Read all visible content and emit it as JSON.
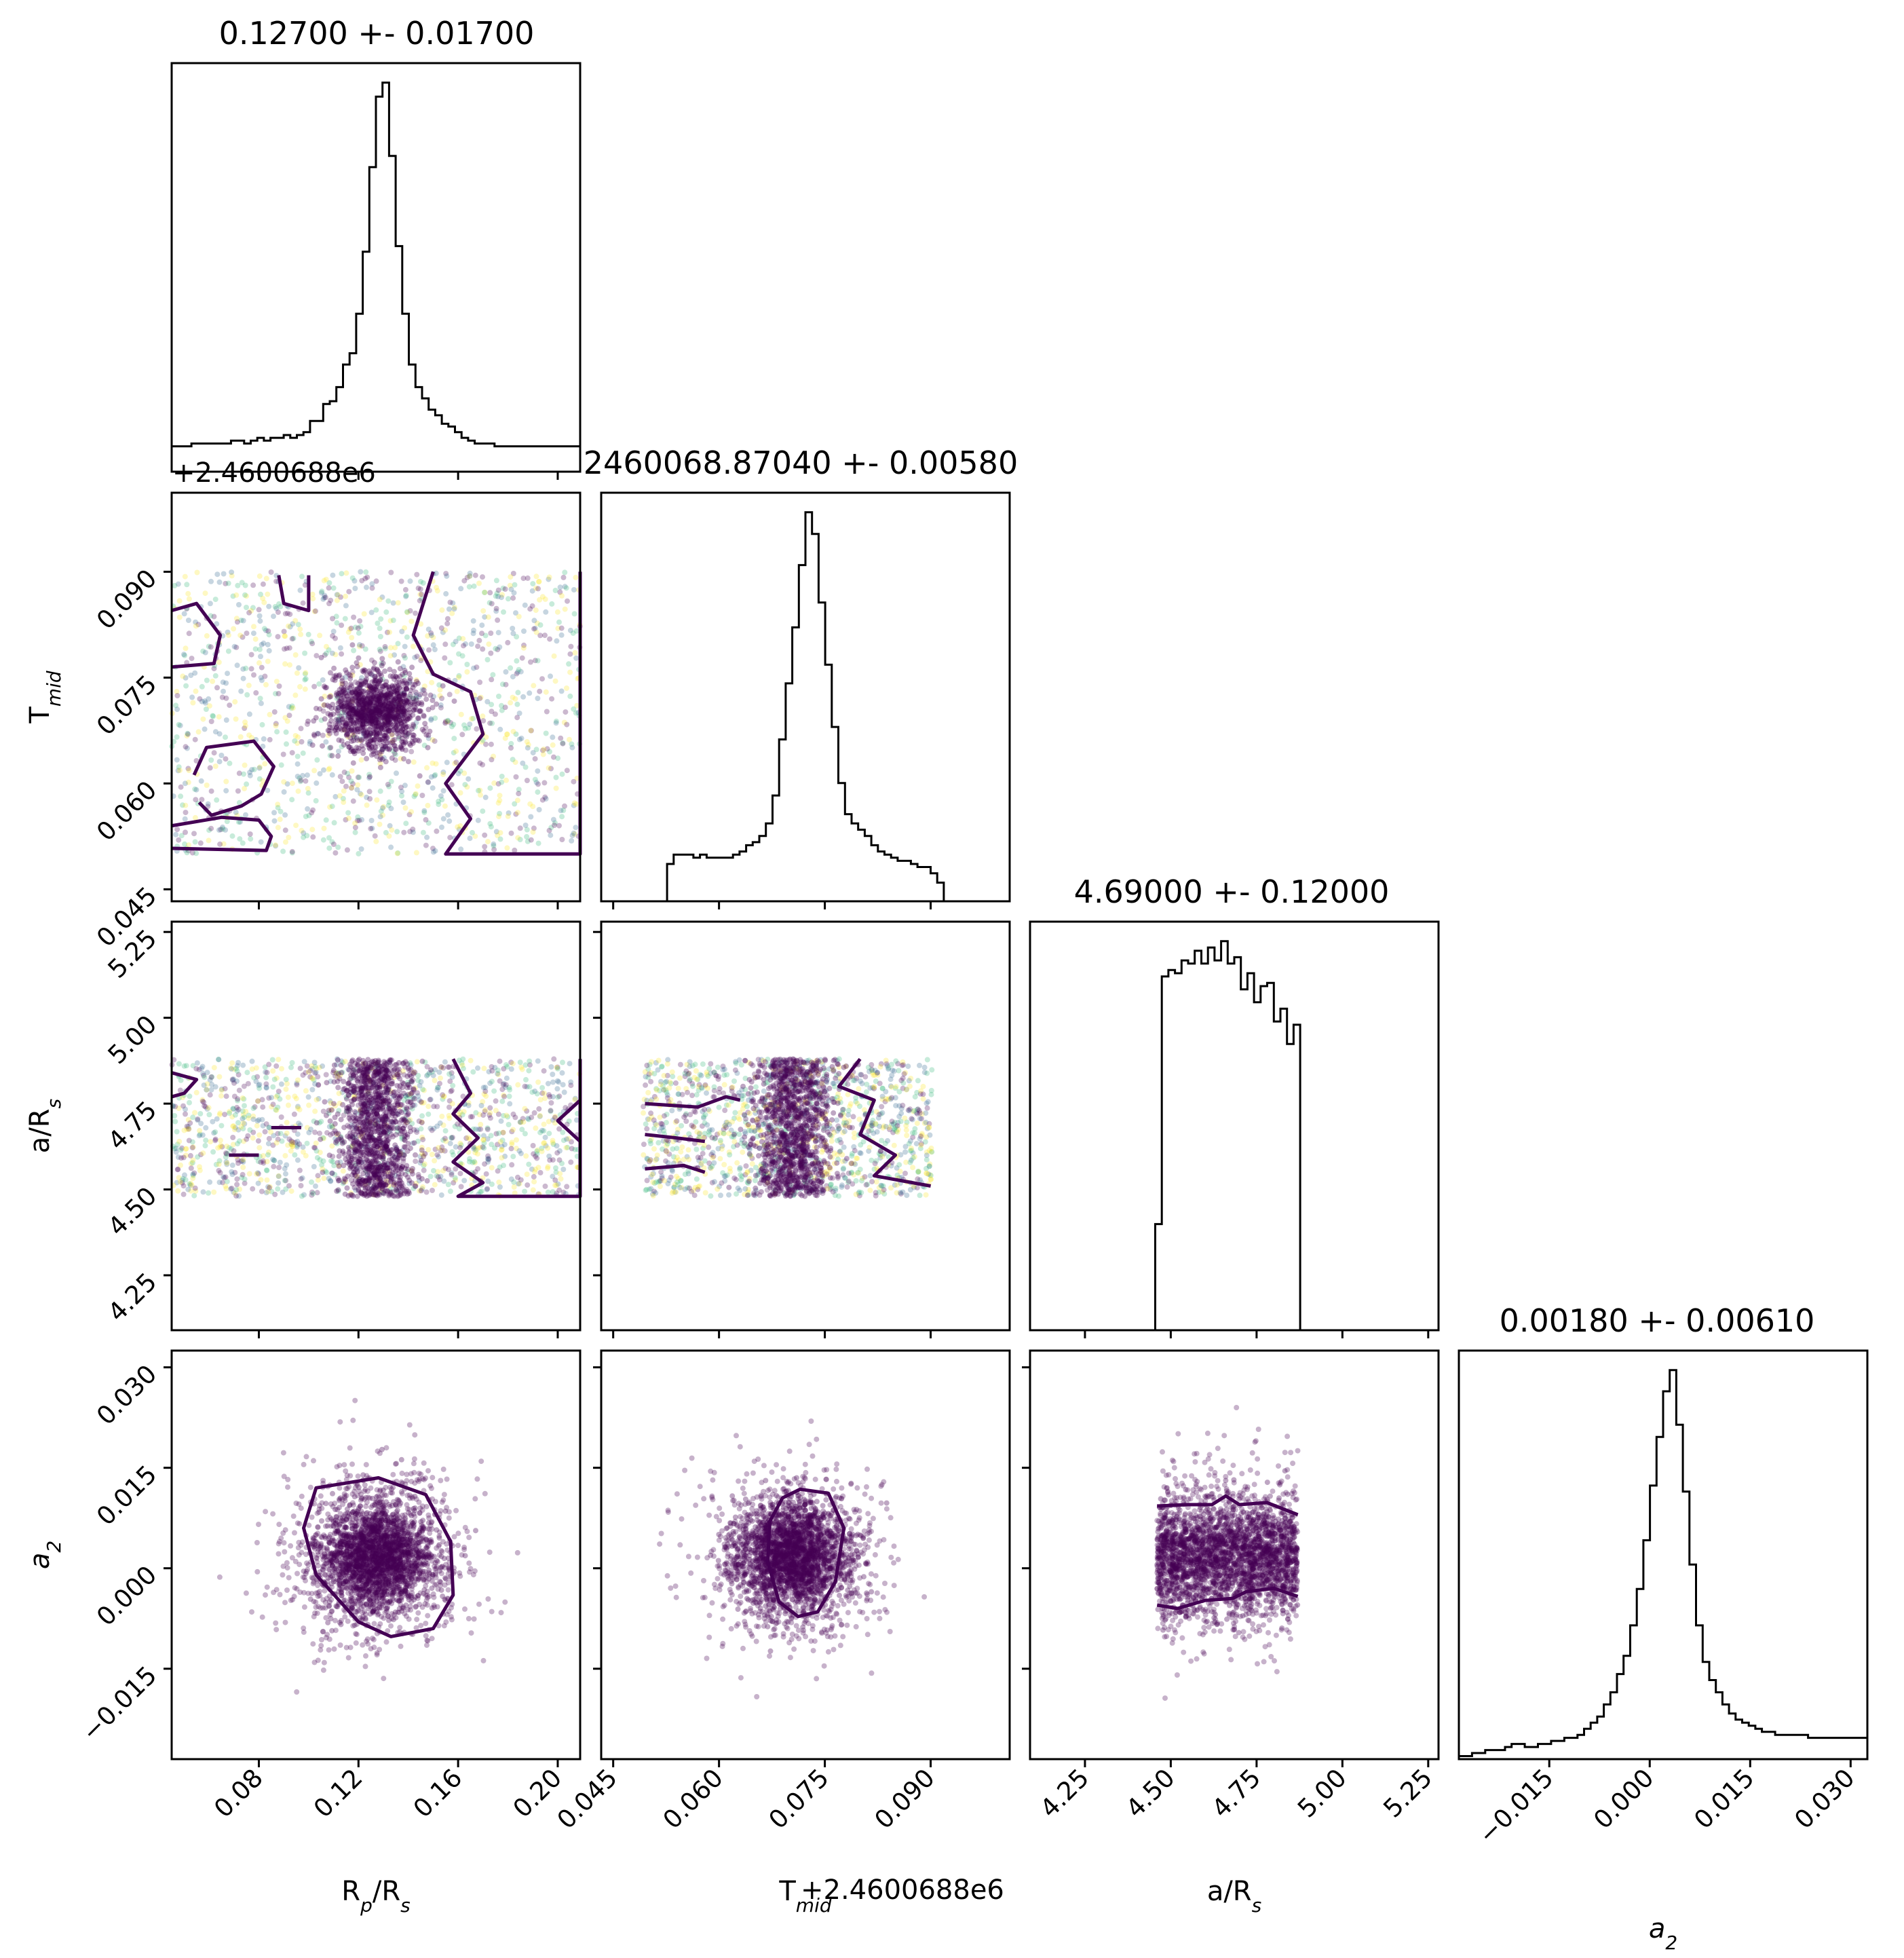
{
  "chart_data": {
    "type": "scatter",
    "plot_type": "corner",
    "colors": {
      "histogram": "#000000",
      "contour": "#440154",
      "points": "#440154",
      "point_colormap": [
        "#440154",
        "#31688e",
        "#35b779",
        "#fde725"
      ]
    },
    "parameters": [
      {
        "key": "rp",
        "label_main": "R",
        "label_sub": "p",
        "label_tail": "/R",
        "label_tail_sub": "s",
        "label_italic": false,
        "title": "0.12700 +- 0.01700",
        "mean": 0.127,
        "std": 0.017,
        "range": [
          0.045,
          0.209
        ],
        "ticks": [
          0.08,
          0.12,
          0.16,
          0.2
        ],
        "tick_labels": [
          "0.08",
          "0.12",
          "0.16",
          "0.20"
        ]
      },
      {
        "key": "tmid",
        "label_main": "T",
        "label_sub": "mid",
        "label_tail": "",
        "label_tail_sub": "",
        "label_italic": false,
        "title": "2460068.87040 +- 0.00580",
        "offset_text": "+2.4600688e6",
        "mean": 0.0704,
        "std": 0.0058,
        "range": [
          0.0433,
          0.1012
        ],
        "ticks": [
          0.045,
          0.06,
          0.075,
          0.09
        ],
        "tick_labels": [
          "0.045",
          "0.060",
          "0.075",
          "0.090"
        ]
      },
      {
        "key": "ars",
        "label_main": "a/R",
        "label_sub": "s",
        "label_tail": "",
        "label_tail_sub": "",
        "label_italic": false,
        "title": "4.69000 +- 0.12000",
        "mean": 4.69,
        "std": 0.12,
        "range": [
          4.09,
          5.28
        ],
        "ticks": [
          4.25,
          4.5,
          4.75,
          5.0,
          5.25
        ],
        "tick_labels": [
          "4.25",
          "4.50",
          "4.75",
          "5.00",
          "5.25"
        ]
      },
      {
        "key": "a2",
        "label_main": "a",
        "label_sub": "2",
        "label_tail": "",
        "label_tail_sub": "",
        "label_italic": true,
        "title": "0.00180 +- 0.00610",
        "mean": 0.0018,
        "std": 0.0061,
        "range": [
          -0.0285,
          0.0325
        ],
        "ticks": [
          -0.015,
          0.0,
          0.015,
          0.03
        ],
        "tick_labels": [
          "−0.015",
          "0.000",
          "0.015",
          "0.030"
        ]
      }
    ],
    "histograms": {
      "rp": [
        9,
        9,
        9,
        10,
        10,
        10,
        10,
        10,
        10,
        11,
        11,
        10,
        11,
        12,
        11,
        12,
        12,
        13,
        12,
        13,
        14,
        18,
        18,
        24,
        25,
        30,
        38,
        42,
        56,
        78,
        108,
        133,
        138,
        112,
        80,
        56,
        38,
        30,
        26,
        22,
        20,
        17,
        16,
        14,
        12,
        11,
        10,
        10,
        10,
        9,
        9,
        9,
        9,
        9,
        9,
        9,
        9,
        9,
        9,
        9,
        9,
        9
      ],
      "tmid": [
        0,
        0,
        0,
        0,
        0,
        0,
        0,
        0,
        0,
        0,
        12,
        15,
        15,
        15,
        14,
        15,
        14,
        14,
        14,
        14,
        15,
        16,
        18,
        19,
        21,
        25,
        34,
        52,
        70,
        88,
        108,
        125,
        118,
        96,
        76,
        56,
        38,
        28,
        25,
        23,
        21,
        18,
        16,
        15,
        14,
        13,
        13,
        12,
        11,
        11,
        9,
        6,
        0,
        0,
        0,
        0,
        0,
        0,
        0,
        0,
        0,
        0
      ],
      "ars": [
        0,
        0,
        0,
        0,
        0,
        0,
        0,
        0,
        0,
        0,
        0,
        0,
        0,
        0,
        0,
        0,
        0,
        0,
        0,
        33,
        110,
        112,
        111,
        115,
        114,
        118,
        114,
        119,
        115,
        121,
        114,
        116,
        106,
        111,
        102,
        107,
        108,
        96,
        100,
        89,
        95,
        0,
        0,
        0,
        0,
        0,
        0,
        0,
        0,
        0,
        0,
        0,
        0,
        0,
        0,
        0,
        0,
        0,
        0,
        0,
        0,
        0
      ],
      "a2": [
        1,
        1,
        2,
        2,
        3,
        3,
        3,
        4,
        5,
        5,
        4,
        4,
        5,
        5,
        6,
        6,
        7,
        7,
        8,
        10,
        12,
        14,
        18,
        22,
        28,
        34,
        44,
        56,
        72,
        90,
        106,
        121,
        128,
        110,
        88,
        64,
        44,
        32,
        26,
        22,
        18,
        15,
        13,
        12,
        11,
        10,
        9,
        9,
        8,
        8,
        8,
        8,
        8,
        7,
        7,
        7,
        7,
        7,
        7,
        7,
        7,
        7
      ]
    },
    "panels": [
      {
        "x": "rp",
        "y": "tmid",
        "x_mode": "uniform",
        "x_bounds": [
          0.045,
          0.209
        ],
        "y_mode": "uniform",
        "y_bounds": [
          0.05,
          0.09
        ],
        "contours": [
          [
            [
              0.045,
              0.0845
            ],
            [
              0.055,
              0.0855
            ],
            [
              0.0645,
              0.081
            ],
            [
              0.062,
              0.077
            ],
            [
              0.045,
              0.0765
            ]
          ],
          [
            [
              0.088,
              0.0895
            ],
            [
              0.09,
              0.0855
            ],
            [
              0.1,
              0.0845
            ],
            [
              0.1,
              0.0895
            ]
          ],
          [
            [
              0.056,
              0.0573
            ],
            [
              0.061,
              0.0555
            ],
            [
              0.073,
              0.0568
            ],
            [
              0.081,
              0.0585
            ],
            [
              0.086,
              0.0624
            ],
            [
              0.078,
              0.066
            ],
            [
              0.059,
              0.0651
            ],
            [
              0.054,
              0.0612
            ]
          ],
          [
            [
              0.045,
              0.054
            ],
            [
              0.065,
              0.0552
            ],
            [
              0.08,
              0.0548
            ],
            [
              0.085,
              0.0525
            ],
            [
              0.083,
              0.0505
            ],
            [
              0.045,
              0.0508
            ]
          ],
          [
            [
              0.15,
              0.09
            ],
            [
              0.142,
              0.081
            ],
            [
              0.15,
              0.0755
            ],
            [
              0.165,
              0.073
            ],
            [
              0.17,
              0.067
            ],
            [
              0.155,
              0.06
            ],
            [
              0.165,
              0.055
            ],
            [
              0.155,
              0.05
            ],
            [
              0.209,
              0.05
            ],
            [
              0.209,
              0.09
            ]
          ]
        ]
      },
      {
        "x": "rp",
        "y": "ars",
        "x_mode": "uniform",
        "x_bounds": [
          0.045,
          0.209
        ],
        "y_mode": "uniform",
        "y_bounds": [
          4.48,
          4.88
        ],
        "contours": [
          [
            [
              0.045,
              4.84
            ],
            [
              0.055,
              4.82
            ],
            [
              0.05,
              4.78
            ],
            [
              0.045,
              4.77
            ]
          ],
          [
            [
              0.085,
              4.68
            ],
            [
              0.097,
              4.68
            ]
          ],
          [
            [
              0.068,
              4.6
            ],
            [
              0.08,
              4.6
            ]
          ],
          [
            [
              0.158,
              4.88
            ],
            [
              0.165,
              4.78
            ],
            [
              0.158,
              4.72
            ],
            [
              0.168,
              4.65
            ],
            [
              0.158,
              4.58
            ],
            [
              0.17,
              4.52
            ],
            [
              0.16,
              4.48
            ],
            [
              0.209,
              4.48
            ],
            [
              0.209,
              4.88
            ]
          ],
          [
            [
              0.209,
              4.76
            ],
            [
              0.2,
              4.7
            ],
            [
              0.209,
              4.64
            ]
          ]
        ]
      },
      {
        "x": "tmid",
        "y": "ars",
        "x_mode": "uniform",
        "x_bounds": [
          0.0492,
          0.0902
        ],
        "y_mode": "uniform",
        "y_bounds": [
          4.48,
          4.88
        ],
        "contours": [
          [
            [
              0.0495,
              4.75
            ],
            [
              0.057,
              4.74
            ],
            [
              0.061,
              4.77
            ],
            [
              0.063,
              4.76
            ]
          ],
          [
            [
              0.0495,
              4.66
            ],
            [
              0.054,
              4.65
            ],
            [
              0.058,
              4.64
            ]
          ],
          [
            [
              0.0495,
              4.56
            ],
            [
              0.055,
              4.57
            ],
            [
              0.058,
              4.55
            ]
          ],
          [
            [
              0.08,
              4.88
            ],
            [
              0.077,
              4.8
            ],
            [
              0.082,
              4.76
            ],
            [
              0.08,
              4.66
            ],
            [
              0.085,
              4.6
            ],
            [
              0.082,
              4.54
            ],
            [
              0.09,
              4.51
            ]
          ]
        ]
      },
      {
        "x": "rp",
        "y": "a2",
        "x_mode": "normal",
        "x_bounds": [
          0.045,
          0.209
        ],
        "y_mode": "normal",
        "y_bounds": [
          -0.0285,
          0.0325
        ],
        "contours": [
          [
            [
              0.128,
              0.0135
            ],
            [
              0.147,
              0.011
            ],
            [
              0.157,
              0.004
            ],
            [
              0.158,
              -0.004
            ],
            [
              0.15,
              -0.009
            ],
            [
              0.133,
              -0.0102
            ],
            [
              0.12,
              -0.008
            ],
            [
              0.103,
              -0.001
            ],
            [
              0.098,
              0.006
            ],
            [
              0.103,
              0.012
            ]
          ]
        ]
      },
      {
        "x": "tmid",
        "y": "a2",
        "x_mode": "normal",
        "x_bounds": [
          0.0433,
          0.1012
        ],
        "y_mode": "normal",
        "y_bounds": [
          -0.0285,
          0.0325
        ],
        "contours": [
          [
            [
              0.0715,
              0.0118
            ],
            [
              0.0755,
              0.0112
            ],
            [
              0.0777,
              0.006
            ],
            [
              0.0765,
              -0.002
            ],
            [
              0.074,
              -0.0065
            ],
            [
              0.0712,
              -0.0072
            ],
            [
              0.0685,
              -0.005
            ],
            [
              0.0669,
              0.001
            ],
            [
              0.0672,
              0.007
            ],
            [
              0.069,
              0.0105
            ]
          ]
        ]
      },
      {
        "x": "ars",
        "y": "a2",
        "x_mode": "uniform",
        "x_bounds": [
          4.46,
          4.87
        ],
        "y_mode": "normal",
        "y_bounds": [
          -0.0285,
          0.0325
        ],
        "contours": [
          [
            [
              4.46,
              0.0093
            ],
            [
              4.55,
              0.0095
            ],
            [
              4.62,
              0.0095
            ],
            [
              4.66,
              0.0108
            ],
            [
              4.7,
              0.0095
            ],
            [
              4.78,
              0.0098
            ],
            [
              4.87,
              0.008
            ]
          ],
          [
            [
              4.46,
              -0.0055
            ],
            [
              4.52,
              -0.006
            ],
            [
              4.6,
              -0.0048
            ],
            [
              4.68,
              -0.0045
            ],
            [
              4.72,
              -0.0035
            ],
            [
              4.8,
              -0.003
            ],
            [
              4.87,
              -0.0042
            ]
          ]
        ]
      }
    ]
  }
}
